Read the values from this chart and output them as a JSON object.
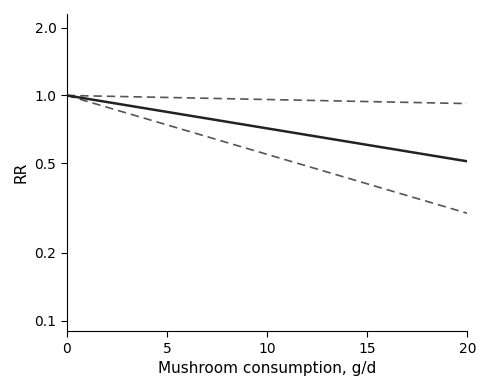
{
  "xlabel": "Mushroom consumption, g/d",
  "ylabel": "RR",
  "xlim": [
    0,
    20
  ],
  "ylim": [
    0.09,
    2.3
  ],
  "xticks": [
    0,
    5,
    10,
    15,
    20
  ],
  "yticks": [
    0.1,
    0.2,
    0.5,
    1.0,
    2.0
  ],
  "ytick_labels": [
    "0.1",
    "0.2",
    "0.5",
    "1.0",
    "2.0"
  ],
  "solid_line": {
    "x": [
      0,
      20
    ],
    "y": [
      1.0,
      0.51
    ],
    "color": "#222222",
    "linewidth": 1.8
  },
  "dashed_upper": {
    "x": [
      0,
      20
    ],
    "y": [
      1.0,
      0.92
    ],
    "color": "#555555",
    "linewidth": 1.2,
    "linestyle": "--",
    "dashes": [
      5,
      3
    ]
  },
  "dashed_lower": {
    "x": [
      0,
      20
    ],
    "y": [
      1.0,
      0.3
    ],
    "color": "#555555",
    "linewidth": 1.2,
    "linestyle": "--",
    "dashes": [
      5,
      3
    ]
  },
  "background_color": "#ffffff",
  "tick_fontsize": 10,
  "label_fontsize": 11
}
